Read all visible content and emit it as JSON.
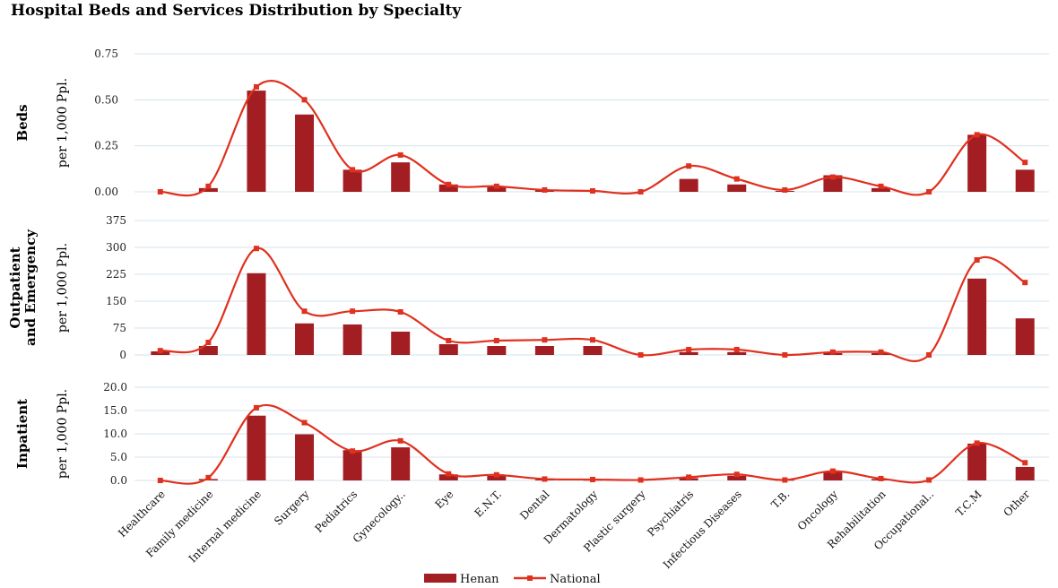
{
  "title": "Hospital Beds and Services Distribution by Specialty",
  "colors": {
    "henan": "#a31e22",
    "national": "#e0301e",
    "grid": "#d5e3ec"
  },
  "legend": {
    "position": "bottom-center"
  },
  "chart_data": {
    "type": "bar",
    "categories": [
      "Healthcare",
      "Family medicine",
      "Internal medicine",
      "Surgery",
      "Pediatrics",
      "Gynecology..",
      "Eye",
      "E.N.T.",
      "Dental",
      "Dermatology",
      "Plastic surgery",
      "Psychiatris",
      "Infectious Diseases",
      "T.B.",
      "Oncology",
      "Rehabilitation",
      "Occupational..",
      "T.C.M",
      "Other"
    ],
    "series_names": {
      "henan": "Henan",
      "national": "National"
    },
    "panels": [
      {
        "id": "beds",
        "ylabel": "Beds",
        "unit": "per 1,000 Ppl.",
        "ylim": [
          0,
          0.75
        ],
        "yticks": [
          "0.00",
          "0.25",
          "0.50",
          "0.75"
        ],
        "grid": true,
        "henan": [
          0,
          0.02,
          0.55,
          0.42,
          0.12,
          0.16,
          0.04,
          0.03,
          0.01,
          0.005,
          0,
          0.07,
          0.04,
          0.005,
          0.09,
          0.02,
          0,
          0.31,
          0.12
        ],
        "national": [
          0,
          0.03,
          0.57,
          0.5,
          0.12,
          0.2,
          0.04,
          0.03,
          0.01,
          0.005,
          0,
          0.14,
          0.07,
          0.01,
          0.08,
          0.03,
          0,
          0.31,
          0.16
        ]
      },
      {
        "id": "outpatient",
        "ylabel": "Outpatient and Emergency",
        "unit": "per 1,000 Ppl.",
        "ylim": [
          0,
          375
        ],
        "yticks": [
          "0",
          "75",
          "150",
          "225",
          "300",
          "375"
        ],
        "grid": true,
        "henan": [
          10,
          25,
          228,
          88,
          85,
          65,
          30,
          25,
          25,
          25,
          0,
          8,
          8,
          0,
          5,
          5,
          0,
          213,
          102
        ],
        "national": [
          12,
          35,
          297,
          122,
          122,
          120,
          40,
          40,
          42,
          42,
          0,
          15,
          15,
          0,
          8,
          8,
          0,
          265,
          202
        ]
      },
      {
        "id": "inpatient",
        "ylabel": "Inpatient",
        "unit": "per 1,000 Ppl.",
        "ylim": [
          0,
          20
        ],
        "yticks": [
          "0.0",
          "5.0",
          "10.0",
          "15.0",
          "20.0"
        ],
        "grid": true,
        "henan": [
          0,
          0.3,
          13.9,
          9.9,
          6.5,
          7.1,
          1.3,
          1.0,
          0.2,
          0.1,
          0,
          0.5,
          1.0,
          0.1,
          1.8,
          0.3,
          0,
          7.9,
          2.9
        ],
        "national": [
          0,
          0.6,
          15.6,
          12.4,
          6.3,
          8.5,
          1.4,
          1.2,
          0.3,
          0.2,
          0.1,
          0.7,
          1.3,
          0.1,
          2.0,
          0.4,
          0.1,
          8.0,
          3.8
        ]
      }
    ]
  }
}
